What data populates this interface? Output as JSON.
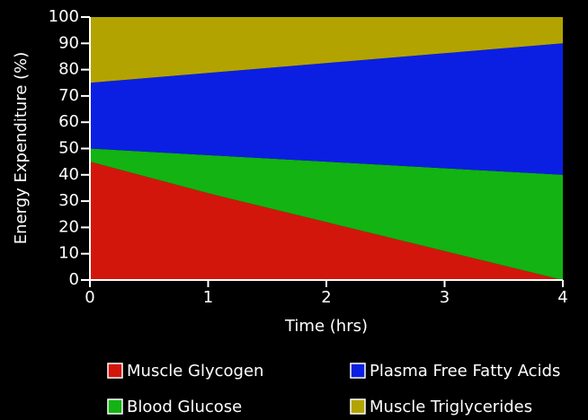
{
  "chart_data": {
    "type": "stacked_area",
    "x_label": "Time (hrs)",
    "y_label": "Energy Expenditure (%)",
    "x": [
      0,
      1,
      2,
      3,
      4
    ],
    "series": [
      {
        "name": "Muscle Glycogen",
        "color": "#d3160c",
        "values": [
          45,
          33,
          22,
          11,
          0
        ]
      },
      {
        "name": "Blood Glucose",
        "color": "#12b312",
        "values": [
          5,
          14.5,
          23,
          31.5,
          40
        ]
      },
      {
        "name": "Plasma Free Fatty Acids",
        "color": "#0b1fe2",
        "values": [
          25,
          31.25,
          37.5,
          43.75,
          50
        ]
      },
      {
        "name": "Muscle Triglycerides",
        "color": "#b3a300",
        "values": [
          25,
          21.25,
          17.5,
          13.75,
          10
        ]
      }
    ],
    "xlim": [
      0,
      4
    ],
    "xticks": [
      0,
      1,
      2,
      3,
      4
    ],
    "ylim": [
      0,
      100
    ],
    "yticks": [
      0,
      10,
      20,
      30,
      40,
      50,
      60,
      70,
      80,
      90,
      100
    ],
    "legend": "bottom"
  }
}
